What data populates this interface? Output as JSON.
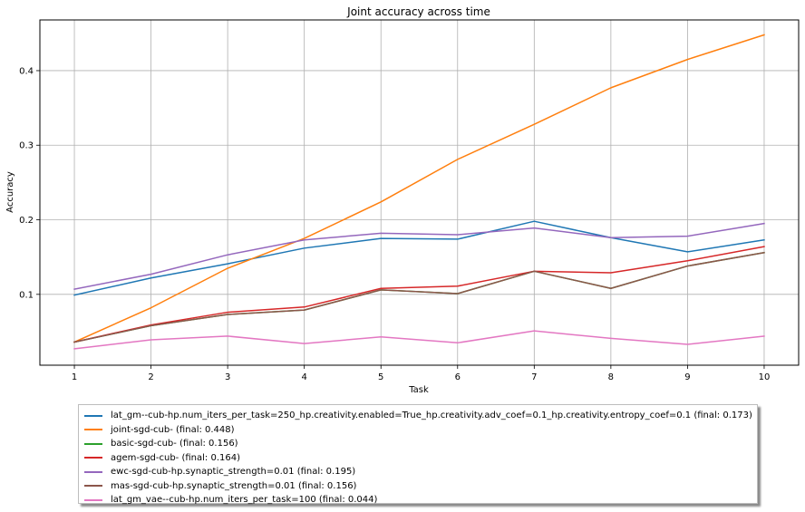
{
  "chart_data": {
    "type": "line",
    "title": "Joint accuracy across time",
    "xlabel": "Task",
    "ylabel": "Accuracy",
    "x": [
      1,
      2,
      3,
      4,
      5,
      6,
      7,
      8,
      9,
      10
    ],
    "xlim": [
      0.55,
      10.45
    ],
    "ylim": [
      0.005,
      0.468
    ],
    "yticks": [
      0.1,
      0.2,
      0.3,
      0.4
    ],
    "ytick_labels": [
      "0.1",
      "0.2",
      "0.3",
      "0.4"
    ],
    "xtick_labels": [
      "1",
      "2",
      "3",
      "4",
      "5",
      "6",
      "7",
      "8",
      "9",
      "10"
    ],
    "grid": true,
    "legend_position": "below",
    "series": [
      {
        "name": "lat_gm--cub-hp.num_iters_per_task=250_hp.creativity.enabled=True_hp.creativity.adv_coef=0.1_hp.creativity.entropy_coef=0.1 (final:  0.173)",
        "color": "#1f77b4",
        "values": [
          0.099,
          0.122,
          0.141,
          0.162,
          0.175,
          0.174,
          0.198,
          0.176,
          0.157,
          0.173
        ]
      },
      {
        "name": "joint-sgd-cub- (final:  0.448)",
        "color": "#ff7f0e",
        "values": [
          0.036,
          0.082,
          0.135,
          0.175,
          0.224,
          0.281,
          0.328,
          0.377,
          0.415,
          0.448
        ]
      },
      {
        "name": "basic-sgd-cub- (final:  0.156)",
        "color": "#2ca02c",
        "values": [
          0.036,
          0.058,
          0.073,
          0.079,
          0.106,
          0.101,
          0.131,
          0.108,
          0.138,
          0.156
        ]
      },
      {
        "name": "agem-sgd-cub- (final:  0.164)",
        "color": "#d62728",
        "values": [
          0.036,
          0.059,
          0.076,
          0.083,
          0.108,
          0.111,
          0.131,
          0.129,
          0.145,
          0.164
        ]
      },
      {
        "name": "ewc-sgd-cub-hp.synaptic_strength=0.01 (final:  0.195)",
        "color": "#9467bd",
        "values": [
          0.107,
          0.127,
          0.153,
          0.173,
          0.182,
          0.18,
          0.189,
          0.176,
          0.178,
          0.195
        ]
      },
      {
        "name": "mas-sgd-cub-hp.synaptic_strength=0.01 (final:  0.156)",
        "color": "#8c564b",
        "values": [
          0.036,
          0.058,
          0.073,
          0.079,
          0.106,
          0.101,
          0.131,
          0.108,
          0.138,
          0.156
        ]
      },
      {
        "name": "lat_gm_vae--cub-hp.num_iters_per_task=100 (final:  0.044)",
        "color": "#e377c2",
        "values": [
          0.027,
          0.039,
          0.044,
          0.034,
          0.043,
          0.035,
          0.051,
          0.041,
          0.033,
          0.044
        ]
      }
    ]
  }
}
